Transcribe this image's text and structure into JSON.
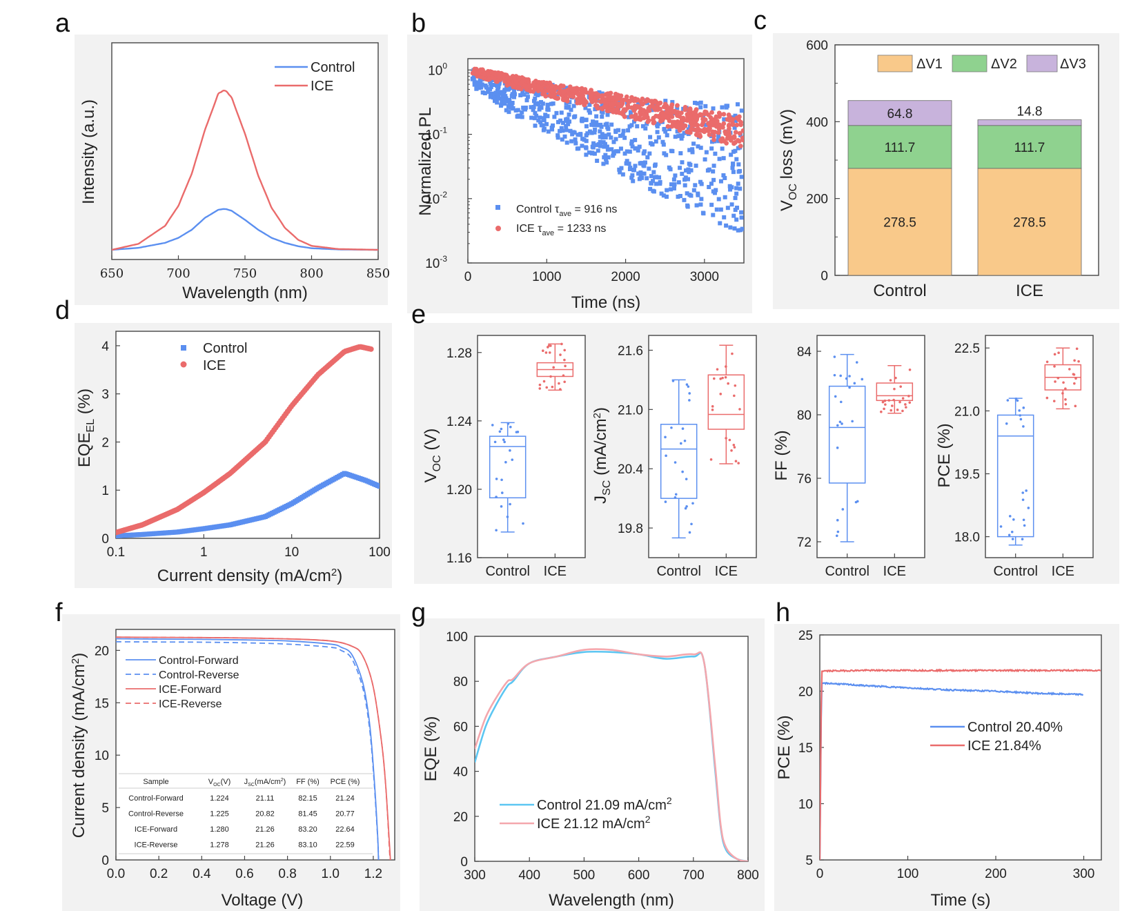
{
  "panels": {
    "a": {
      "letter": "a",
      "xlabel": "Wavelength (nm)",
      "ylabel": "Intensity (a.u.)",
      "xticks": [
        "650",
        "700",
        "750",
        "800",
        "850"
      ],
      "legend": [
        "Control",
        "ICE"
      ]
    },
    "b": {
      "letter": "b",
      "xlabel": "Time (ns)",
      "ylabel": "Normalized PL",
      "xticks": [
        "0",
        "1000",
        "2000",
        "3000"
      ],
      "yticks": [
        "10",
        "10",
        "10",
        "10"
      ],
      "yexp": [
        "0",
        "-1",
        "-2",
        "-3"
      ],
      "legend": [
        {
          "pre": "Control τ",
          "sub": "ave",
          "post": " = 916 ns"
        },
        {
          "pre": "ICE τ",
          "sub": "ave",
          "post": " = 1233 ns"
        }
      ]
    },
    "c": {
      "letter": "c",
      "ylabel_main": "V",
      "ylabel_sub": "OC",
      "ylabel_rest": " loss (mV)",
      "yticks": [
        "0",
        "200",
        "400",
        "600"
      ],
      "categories": [
        "Control",
        "ICE"
      ],
      "legend": [
        "ΔV1",
        "ΔV2",
        "ΔV3"
      ]
    },
    "d": {
      "letter": "d",
      "xlabel_pre": "Current density (mA/cm",
      "xlabel_sup": "2",
      "xlabel_post": ")",
      "ylabel_main": "EQE",
      "ylabel_sub": "EL",
      "ylabel_rest": " (%)",
      "xticks": [
        "0.1",
        "1",
        "10",
        "100"
      ],
      "yticks": [
        "0",
        "1",
        "2",
        "3",
        "4"
      ],
      "legend": [
        "Control",
        "ICE"
      ]
    },
    "e": {
      "letter": "e",
      "categories": [
        "Control",
        "ICE"
      ],
      "voc": {
        "ylabel_main": "V",
        "ylabel_sub": "OC",
        "ylabel_rest": " (V)",
        "yticks": [
          "1.16",
          "1.20",
          "1.24",
          "1.28"
        ]
      },
      "jsc": {
        "ylabel_main": "J",
        "ylabel_sub": "SC",
        "ylabel_rest": " (mA/cm",
        "ylabel_sup": "2",
        "ylabel_end": ")",
        "yticks": [
          "19.8",
          "20.4",
          "21.0",
          "21.6"
        ]
      },
      "ff": {
        "ylabel": "FF (%)",
        "yticks": [
          "72",
          "76",
          "80",
          "84"
        ]
      },
      "pce": {
        "ylabel": "PCE (%)",
        "yticks": [
          "18.0",
          "19.5",
          "21.0",
          "22.5"
        ]
      }
    },
    "f": {
      "letter": "f",
      "xlabel": "Voltage (V)",
      "ylabel_pre": "Current density (mA/cm",
      "ylabel_sup": "2",
      "ylabel_post": ")",
      "xticks": [
        "0.0",
        "0.2",
        "0.4",
        "0.6",
        "0.8",
        "1.0",
        "1.2"
      ],
      "yticks": [
        "0",
        "5",
        "10",
        "15",
        "20"
      ],
      "legend": [
        "Control-Forward",
        "Control-Reverse",
        "ICE-Forward",
        "ICE-Reverse"
      ],
      "table": {
        "headers": [
          "Sample",
          "V(V)",
          "J(mA/cm)",
          "FF (%)",
          "PCE (%)"
        ],
        "header_parts": [
          {
            "main": "Sample"
          },
          {
            "main": "V",
            "sub": "OC",
            "rest": "(V)"
          },
          {
            "main": "J",
            "sub": "SC",
            "rest": "(mA/cm",
            "sup": "2",
            "end": ")"
          },
          {
            "main": "FF (%)"
          },
          {
            "main": "PCE (%)"
          }
        ],
        "rows": [
          [
            "Control-Forward",
            "1.224",
            "21.11",
            "82.15",
            "21.24"
          ],
          [
            "Control-Reverse",
            "1.225",
            "20.82",
            "81.45",
            "20.77"
          ],
          [
            "ICE-Forward",
            "1.280",
            "21.26",
            "83.20",
            "22.64"
          ],
          [
            "ICE-Reverse",
            "1.278",
            "21.26",
            "83.10",
            "22.59"
          ]
        ]
      }
    },
    "g": {
      "letter": "g",
      "xlabel": "Wavelength (nm)",
      "ylabel": "EQE (%)",
      "xticks": [
        "300",
        "400",
        "500",
        "600",
        "700",
        "800"
      ],
      "yticks": [
        "0",
        "20",
        "40",
        "60",
        "80",
        "100"
      ],
      "legend": [
        {
          "pre": "Control 21.09 mA/cm",
          "sup": "2"
        },
        {
          "pre": "ICE 21.12 mA/cm",
          "sup": "2"
        }
      ]
    },
    "h": {
      "letter": "h",
      "xlabel": "Time (s)",
      "ylabel": "PCE (%)",
      "xticks": [
        "0",
        "100",
        "200",
        "300"
      ],
      "yticks": [
        "5",
        "10",
        "15",
        "20",
        "25"
      ],
      "legend": [
        "Control 20.40%",
        "ICE 21.84%"
      ]
    }
  },
  "colors": {
    "control": "#5b8ff0",
    "ice": "#ea6b6b",
    "dv1": "#f9c98a",
    "dv2": "#8fd28f",
    "dv3": "#c8b3dc"
  },
  "chart_data": [
    {
      "panel": "a",
      "type": "line",
      "x": [
        650,
        670,
        690,
        700,
        710,
        720,
        730,
        735,
        740,
        750,
        760,
        770,
        780,
        790,
        800,
        820,
        850
      ],
      "series": [
        {
          "name": "Control",
          "values": [
            0.0,
            0.01,
            0.035,
            0.06,
            0.1,
            0.16,
            0.2,
            0.205,
            0.195,
            0.15,
            0.1,
            0.06,
            0.035,
            0.018,
            0.008,
            0.002,
            0.0
          ]
        },
        {
          "name": "ICE",
          "values": [
            0.0,
            0.03,
            0.12,
            0.22,
            0.38,
            0.6,
            0.78,
            0.8,
            0.76,
            0.58,
            0.37,
            0.21,
            0.11,
            0.05,
            0.02,
            0.004,
            0.0
          ]
        }
      ],
      "xlabel": "Wavelength (nm)",
      "ylabel": "Intensity (a.u.)",
      "xlim": [
        650,
        850
      ],
      "ylim": [
        0,
        1
      ]
    },
    {
      "panel": "b",
      "type": "scatter",
      "yscale": "log",
      "series": [
        {
          "name": "Control",
          "tau_ns": 916,
          "x": [
            50,
            500,
            1000,
            1500,
            2000,
            2500,
            3000,
            3500
          ],
          "values": [
            0.75,
            0.4,
            0.25,
            0.15,
            0.09,
            0.06,
            0.04,
            0.03
          ]
        },
        {
          "name": "ICE",
          "tau_ns": 1233,
          "x": [
            50,
            500,
            1000,
            1500,
            2000,
            2500,
            3000,
            3500
          ],
          "values": [
            0.95,
            0.7,
            0.5,
            0.37,
            0.27,
            0.2,
            0.14,
            0.11
          ]
        }
      ],
      "xlabel": "Time (ns)",
      "ylabel": "Normalized PL",
      "xlim": [
        0,
        3500
      ],
      "ylim": [
        0.001,
        1.5
      ]
    },
    {
      "panel": "c",
      "type": "bar",
      "stacked": true,
      "categories": [
        "Control",
        "ICE"
      ],
      "series": [
        {
          "name": "ΔV1",
          "values": [
            278.5,
            278.5
          ]
        },
        {
          "name": "ΔV2",
          "values": [
            111.7,
            111.7
          ]
        },
        {
          "name": "ΔV3",
          "values": [
            64.8,
            14.8
          ]
        }
      ],
      "data_labels": [
        [
          "278.5",
          "111.7",
          "64.8"
        ],
        [
          "278.5",
          "111.7",
          "14.8"
        ]
      ],
      "ylim": [
        0,
        600
      ]
    },
    {
      "panel": "d",
      "type": "scatter",
      "xscale": "log",
      "series": [
        {
          "name": "Control",
          "x": [
            0.1,
            0.2,
            0.5,
            1,
            2,
            5,
            10,
            20,
            40,
            70,
            100
          ],
          "values": [
            0.05,
            0.08,
            0.13,
            0.2,
            0.28,
            0.45,
            0.72,
            1.05,
            1.35,
            1.2,
            1.08
          ]
        },
        {
          "name": "ICE",
          "x": [
            0.1,
            0.2,
            0.5,
            1,
            2,
            5,
            10,
            20,
            40,
            60,
            80
          ],
          "values": [
            0.12,
            0.28,
            0.6,
            0.95,
            1.35,
            2.0,
            2.75,
            3.4,
            3.88,
            3.98,
            3.93
          ]
        }
      ],
      "xlabel": "Current density (mA/cm2)",
      "xlim": [
        0.1,
        100
      ],
      "ylim": [
        0,
        4.3
      ]
    },
    {
      "panel": "e",
      "type": "box",
      "categories": [
        "Control",
        "ICE"
      ],
      "metrics": [
        {
          "name": "VOC",
          "ylim": [
            1.16,
            1.29
          ],
          "boxes": [
            {
              "min": 1.175,
              "q1": 1.195,
              "median": 1.225,
              "q3": 1.231,
              "max": 1.239
            },
            {
              "min": 1.258,
              "q1": 1.266,
              "median": 1.27,
              "q3": 1.274,
              "max": 1.285
            }
          ]
        },
        {
          "name": "JSC",
          "ylim": [
            19.5,
            21.75
          ],
          "boxes": [
            {
              "min": 19.7,
              "q1": 20.1,
              "median": 20.6,
              "q3": 20.85,
              "max": 21.3
            },
            {
              "min": 20.45,
              "q1": 20.8,
              "median": 20.95,
              "q3": 21.35,
              "max": 21.65
            }
          ]
        },
        {
          "name": "FF",
          "ylim": [
            71,
            85
          ],
          "boxes": [
            {
              "min": 72.0,
              "q1": 75.7,
              "median": 79.2,
              "q3": 81.8,
              "max": 83.8
            },
            {
              "min": 80.1,
              "q1": 80.9,
              "median": 81.2,
              "q3": 82.0,
              "max": 83.1
            }
          ]
        },
        {
          "name": "PCE",
          "ylim": [
            17.5,
            22.8
          ],
          "boxes": [
            {
              "min": 17.8,
              "q1": 18.0,
              "median": 20.4,
              "q3": 20.9,
              "max": 21.3
            },
            {
              "min": 21.05,
              "q1": 21.5,
              "median": 21.8,
              "q3": 22.1,
              "max": 22.5
            }
          ]
        }
      ]
    },
    {
      "panel": "f",
      "type": "line",
      "series": [
        {
          "name": "Control-Forward",
          "x": [
            0,
            0.2,
            0.4,
            0.6,
            0.8,
            1.0,
            1.05,
            1.1,
            1.15,
            1.18,
            1.2,
            1.22,
            1.224
          ],
          "values": [
            21.11,
            21.08,
            21.05,
            21.0,
            20.9,
            20.6,
            20.3,
            19.6,
            17.0,
            13.5,
            9.0,
            2.5,
            0
          ]
        },
        {
          "name": "Control-Reverse",
          "x": [
            0,
            0.2,
            0.4,
            0.6,
            0.8,
            1.0,
            1.05,
            1.1,
            1.15,
            1.18,
            1.2,
            1.22,
            1.225
          ],
          "values": [
            20.82,
            20.8,
            20.78,
            20.72,
            20.6,
            20.3,
            20.0,
            19.2,
            16.5,
            13.0,
            8.6,
            2.3,
            0
          ]
        },
        {
          "name": "ICE-Forward",
          "x": [
            0,
            0.2,
            0.4,
            0.6,
            0.8,
            1.0,
            1.1,
            1.15,
            1.2,
            1.24,
            1.26,
            1.28
          ],
          "values": [
            21.26,
            21.24,
            21.22,
            21.18,
            21.1,
            20.9,
            20.4,
            19.5,
            16.5,
            11.0,
            6.5,
            0
          ]
        },
        {
          "name": "ICE-Reverse",
          "x": [
            0,
            0.2,
            0.4,
            0.6,
            0.8,
            1.0,
            1.1,
            1.15,
            1.2,
            1.24,
            1.26,
            1.278
          ],
          "values": [
            21.26,
            21.24,
            21.22,
            21.18,
            21.1,
            20.9,
            20.4,
            19.5,
            16.5,
            11.0,
            6.5,
            0
          ]
        }
      ],
      "xlim": [
        0,
        1.3
      ],
      "ylim": [
        0,
        22
      ]
    },
    {
      "panel": "g",
      "type": "line",
      "series": [
        {
          "name": "Control",
          "x": [
            300,
            320,
            340,
            360,
            370,
            400,
            450,
            500,
            550,
            600,
            650,
            700,
            720,
            740,
            750,
            760,
            780,
            800
          ],
          "values": [
            44,
            60,
            70,
            78,
            80,
            88,
            91,
            93,
            93,
            92,
            90,
            91,
            88,
            40,
            15,
            5,
            1,
            0
          ]
        },
        {
          "name": "ICE",
          "x": [
            300,
            320,
            340,
            360,
            370,
            400,
            450,
            500,
            550,
            600,
            650,
            700,
            720,
            740,
            750,
            760,
            780,
            800
          ],
          "values": [
            50,
            64,
            73,
            80,
            81,
            88,
            91,
            94,
            94,
            92,
            91,
            92,
            88,
            42,
            16,
            6,
            1,
            0
          ]
        }
      ],
      "xlim": [
        300,
        800
      ],
      "ylim": [
        0,
        100
      ]
    },
    {
      "panel": "h",
      "type": "line",
      "series": [
        {
          "name": "Control",
          "x": [
            0,
            2,
            10,
            50,
            100,
            150,
            200,
            250,
            300
          ],
          "values": [
            5,
            20.7,
            20.7,
            20.5,
            20.3,
            20.1,
            20.0,
            19.8,
            19.7
          ]
        },
        {
          "name": "ICE",
          "x": [
            0,
            2,
            10,
            50,
            100,
            150,
            200,
            250,
            300,
            320
          ],
          "values": [
            5,
            21.8,
            21.8,
            21.85,
            21.85,
            21.84,
            21.85,
            21.84,
            21.85,
            21.85
          ]
        }
      ],
      "xlim": [
        0,
        320
      ],
      "ylim": [
        5,
        25
      ]
    }
  ]
}
